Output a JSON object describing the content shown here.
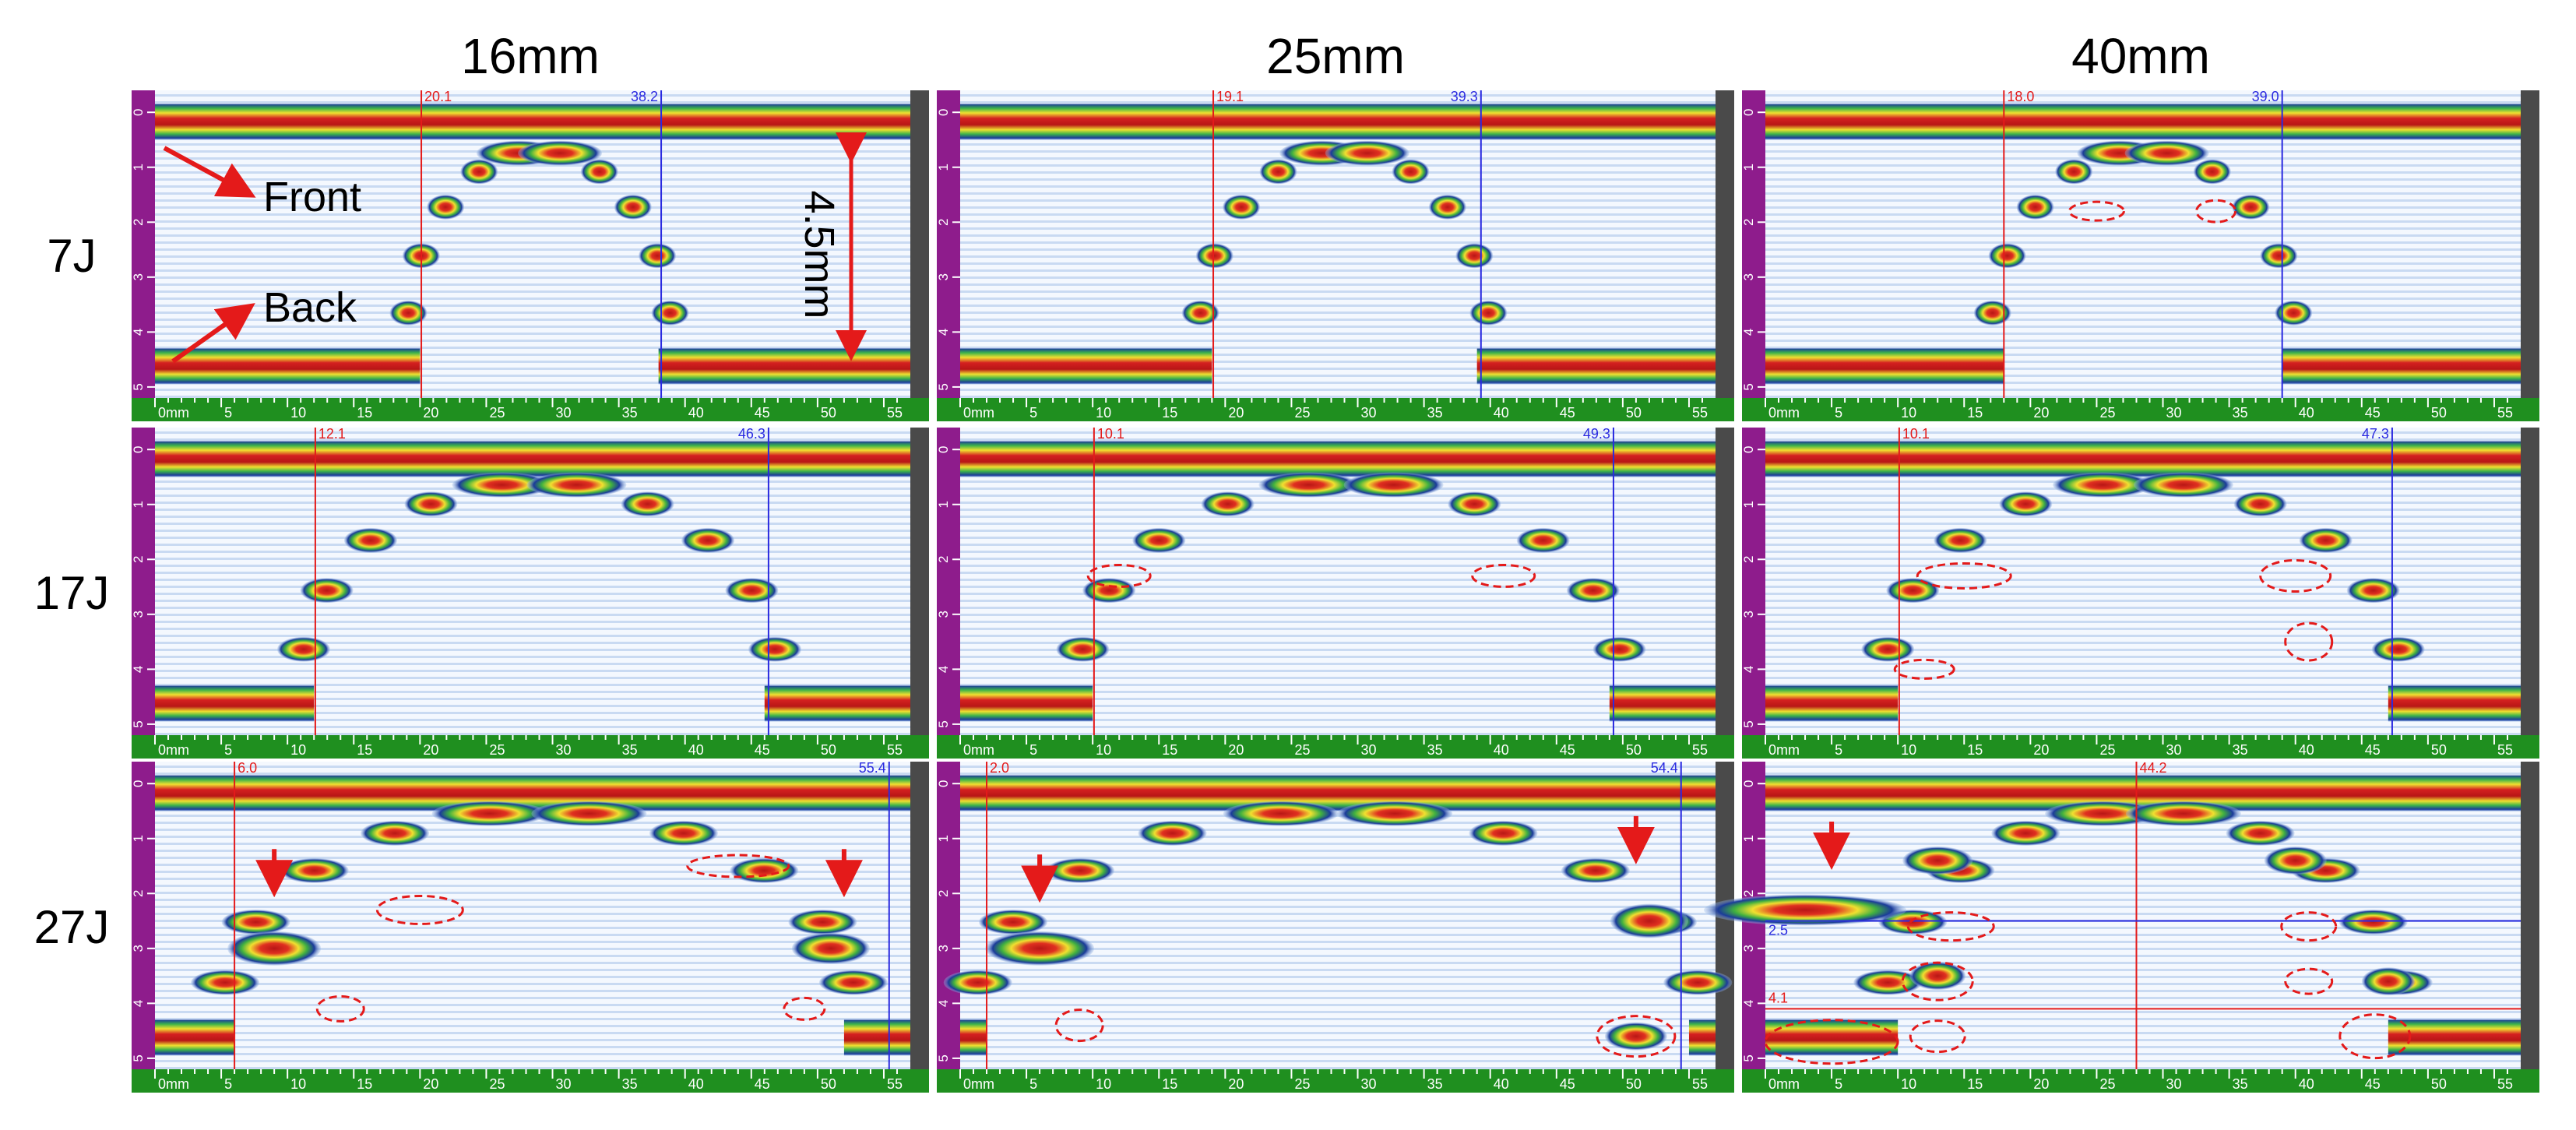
{
  "columns": [
    "16mm",
    "25mm",
    "40mm"
  ],
  "rows": [
    "7J",
    "17J",
    "27J"
  ],
  "annotations": {
    "front": "Front",
    "back": "Back",
    "thickness": "4.5mm"
  },
  "scan_axis": {
    "x_ticks": [
      "0mm",
      "5",
      "10",
      "15",
      "20",
      "25",
      "30",
      "35",
      "40",
      "45",
      "50",
      "55"
    ],
    "depth_ticks": [
      "0",
      "1",
      "2",
      "3",
      "4",
      "5"
    ]
  },
  "panels": [
    [
      {
        "red": "20.1",
        "blue": "38.2"
      },
      {
        "red": "19.1",
        "blue": "39.3"
      },
      {
        "red": "18.0",
        "blue": "39.0"
      }
    ],
    [
      {
        "red": "12.1",
        "blue": "46.3"
      },
      {
        "red": "10.1",
        "blue": "49.3"
      },
      {
        "red": "10.1",
        "blue": "47.3"
      }
    ],
    [
      {
        "red": "6.0",
        "blue": "55.4"
      },
      {
        "red": "2.0",
        "blue": "54.4"
      },
      {
        "red": "44.2",
        "blue_h": "2.5",
        "red_h": "4.1"
      }
    ]
  ]
}
